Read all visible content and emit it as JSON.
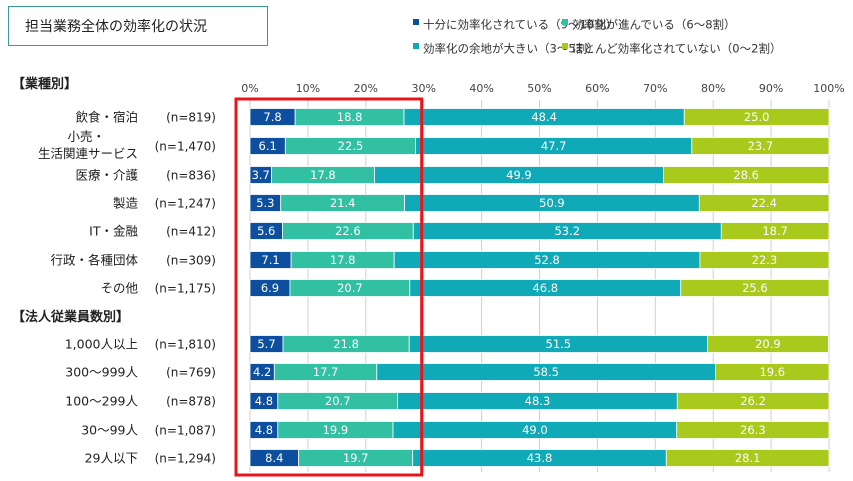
{
  "title": "担当業務全体の効率化の状況",
  "colors": {
    "s0": "#0d4f9e",
    "s1": "#32c0a2",
    "s2": "#10a9b8",
    "s3": "#a9c91d",
    "highlight": "#e8141c",
    "grid": "#d0d0d0"
  },
  "chart_data": {
    "type": "bar",
    "orientation": "horizontal",
    "stacked": true,
    "xlim": [
      0,
      100
    ],
    "x_ticks": [
      "0%",
      "10%",
      "20%",
      "30%",
      "40%",
      "50%",
      "60%",
      "70%",
      "80%",
      "90%",
      "100%"
    ],
    "groups": [
      {
        "label": "【業種別】",
        "start": 0
      },
      {
        "label": "【法人従業員数別】",
        "start": 7
      }
    ],
    "series": [
      {
        "name": "十分に効率化されている（9～10割）"
      },
      {
        "name": "効率化が進んでいる（6～8割）"
      },
      {
        "name": "効率化の余地が大きい（3～5割）"
      },
      {
        "name": "ほとんど効率化されていない（0～2割）"
      }
    ],
    "rows": [
      {
        "category": [
          "飲食・宿泊"
        ],
        "n": "(n=819)",
        "values": [
          7.8,
          18.8,
          48.4,
          25.0
        ]
      },
      {
        "category": [
          "小売・",
          "生活関連サービス"
        ],
        "n": "(n=1,470)",
        "values": [
          6.1,
          22.5,
          47.7,
          23.7
        ]
      },
      {
        "category": [
          "医療・介護"
        ],
        "n": "(n=836)",
        "values": [
          3.7,
          17.8,
          49.9,
          28.6
        ]
      },
      {
        "category": [
          "製造"
        ],
        "n": "(n=1,247)",
        "values": [
          5.3,
          21.4,
          50.9,
          22.4
        ]
      },
      {
        "category": [
          "IT・金融"
        ],
        "n": "(n=412)",
        "values": [
          5.6,
          22.6,
          53.2,
          18.7
        ]
      },
      {
        "category": [
          "行政・各種団体"
        ],
        "n": "(n=309)",
        "values": [
          7.1,
          17.8,
          52.8,
          22.3
        ]
      },
      {
        "category": [
          "その他"
        ],
        "n": "(n=1,175)",
        "values": [
          6.9,
          20.7,
          46.8,
          25.6
        ]
      },
      {
        "category": [
          "1,000人以上"
        ],
        "n": "(n=1,810)",
        "values": [
          5.7,
          21.8,
          51.5,
          20.9
        ]
      },
      {
        "category": [
          "300～999人"
        ],
        "n": "(n=769)",
        "values": [
          4.2,
          17.7,
          58.5,
          19.6
        ]
      },
      {
        "category": [
          "100～299人"
        ],
        "n": "(n=878)",
        "values": [
          4.8,
          20.7,
          48.3,
          26.2
        ]
      },
      {
        "category": [
          "30～99人"
        ],
        "n": "(n=1,087)",
        "values": [
          4.8,
          19.9,
          49.0,
          26.3
        ]
      },
      {
        "category": [
          "29人以下"
        ],
        "n": "(n=1,294)",
        "values": [
          8.4,
          19.7,
          43.8,
          28.1
        ]
      }
    ],
    "highlight_range": [
      0,
      30
    ],
    "legend_position": "top"
  }
}
